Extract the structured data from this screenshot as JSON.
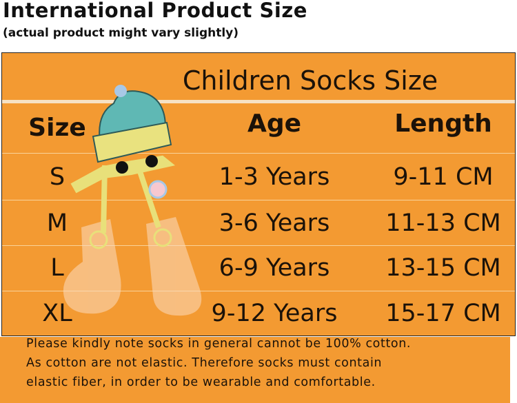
{
  "title": "International Product Size",
  "subtitle": "(actual product might vary slightly)",
  "table": {
    "title": "Children Socks Size",
    "headers": [
      "Size",
      "Age",
      "Length"
    ],
    "rows": [
      [
        "S",
        "1-3 Years",
        "9-11 CM"
      ],
      [
        "M",
        "3-6 Years",
        "11-13 CM"
      ],
      [
        "L",
        "6-9 Years",
        "13-15 CM"
      ],
      [
        "XL",
        "9-12 Years",
        "15-17 CM"
      ]
    ]
  },
  "notes": [
    "Please kindly note socks in general cannot be 100% cotton.",
    "As cotton are not elastic. Therefore socks must contain",
    "elastic fiber, in order to be wearable and comfortable."
  ],
  "colors": {
    "background": "#f39a32",
    "text": "#1b1209",
    "hat": "#5fb8b4",
    "sock": "#f7c59a"
  }
}
